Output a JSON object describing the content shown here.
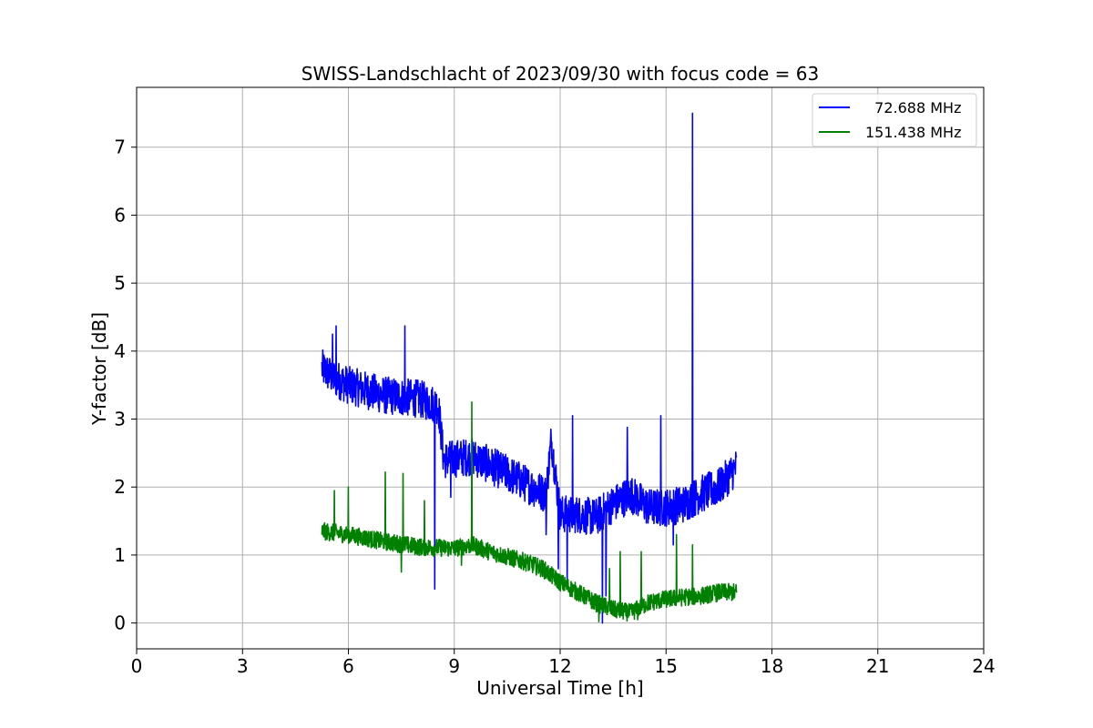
{
  "chart_data": {
    "type": "line",
    "title": "SWISS-Landschlacht of 2023/09/30 with focus code = 63",
    "xlabel": "Universal Time [h]",
    "ylabel": "Y-factor [dB]",
    "xlim": [
      0,
      24
    ],
    "ylim": [
      -0.38,
      7.88
    ],
    "xticks": [
      0,
      3,
      6,
      9,
      12,
      15,
      18,
      21,
      24
    ],
    "yticks": [
      0,
      1,
      2,
      3,
      4,
      5,
      6,
      7
    ],
    "grid": true,
    "legend_position": "top-right",
    "series": [
      {
        "name": "  72.688 MHz",
        "color": "#0000ff",
        "trend": [
          [
            5.25,
            3.75
          ],
          [
            5.6,
            3.6
          ],
          [
            6.0,
            3.5
          ],
          [
            7.0,
            3.35
          ],
          [
            8.0,
            3.3
          ],
          [
            8.55,
            3.2
          ],
          [
            8.7,
            2.4
          ],
          [
            9.5,
            2.45
          ],
          [
            10.5,
            2.2
          ],
          [
            11.2,
            2.0
          ],
          [
            11.6,
            1.9
          ],
          [
            11.75,
            2.7
          ],
          [
            12.0,
            1.6
          ],
          [
            12.5,
            1.6
          ],
          [
            13.0,
            1.55
          ],
          [
            13.5,
            1.75
          ],
          [
            14.0,
            1.9
          ],
          [
            14.5,
            1.7
          ],
          [
            15.0,
            1.7
          ],
          [
            15.5,
            1.75
          ],
          [
            16.0,
            1.9
          ],
          [
            16.5,
            2.0
          ],
          [
            17.0,
            2.3
          ]
        ],
        "noise": 0.28,
        "dips": [
          [
            8.45,
            0.5
          ],
          [
            8.9,
            1.85
          ],
          [
            11.6,
            1.3
          ],
          [
            11.95,
            0.8
          ],
          [
            12.2,
            0.6
          ],
          [
            13.2,
            0.0
          ],
          [
            13.3,
            0.4
          ],
          [
            15.2,
            1.15
          ]
        ],
        "spikes": [
          [
            5.55,
            4.25
          ],
          [
            5.65,
            4.37
          ],
          [
            7.6,
            4.37
          ],
          [
            11.6,
            3.0
          ],
          [
            12.35,
            3.05
          ],
          [
            13.9,
            2.88
          ],
          [
            14.85,
            3.05
          ],
          [
            15.75,
            7.5
          ]
        ]
      },
      {
        "name": "151.438 MHz",
        "color": "#008000",
        "trend": [
          [
            5.25,
            1.35
          ],
          [
            6.0,
            1.3
          ],
          [
            7.0,
            1.2
          ],
          [
            8.0,
            1.12
          ],
          [
            9.0,
            1.1
          ],
          [
            9.5,
            1.15
          ],
          [
            10.0,
            1.05
          ],
          [
            11.0,
            0.9
          ],
          [
            11.5,
            0.8
          ],
          [
            12.0,
            0.6
          ],
          [
            12.5,
            0.45
          ],
          [
            13.0,
            0.3
          ],
          [
            13.5,
            0.2
          ],
          [
            14.0,
            0.15
          ],
          [
            14.5,
            0.3
          ],
          [
            15.0,
            0.35
          ],
          [
            15.5,
            0.38
          ],
          [
            16.0,
            0.4
          ],
          [
            16.5,
            0.45
          ],
          [
            17.0,
            0.45
          ]
        ],
        "noise": 0.13,
        "dips": [
          [
            7.5,
            0.75
          ],
          [
            9.2,
            0.85
          ],
          [
            13.1,
            0.02
          ],
          [
            14.2,
            0.05
          ]
        ],
        "spikes": [
          [
            5.6,
            1.95
          ],
          [
            6.0,
            2.0
          ],
          [
            7.05,
            2.22
          ],
          [
            7.55,
            2.2
          ],
          [
            8.15,
            1.8
          ],
          [
            9.5,
            3.25
          ],
          [
            13.4,
            0.8
          ],
          [
            13.7,
            1.05
          ],
          [
            14.3,
            1.05
          ],
          [
            15.3,
            1.3
          ],
          [
            15.75,
            1.15
          ]
        ]
      }
    ]
  }
}
